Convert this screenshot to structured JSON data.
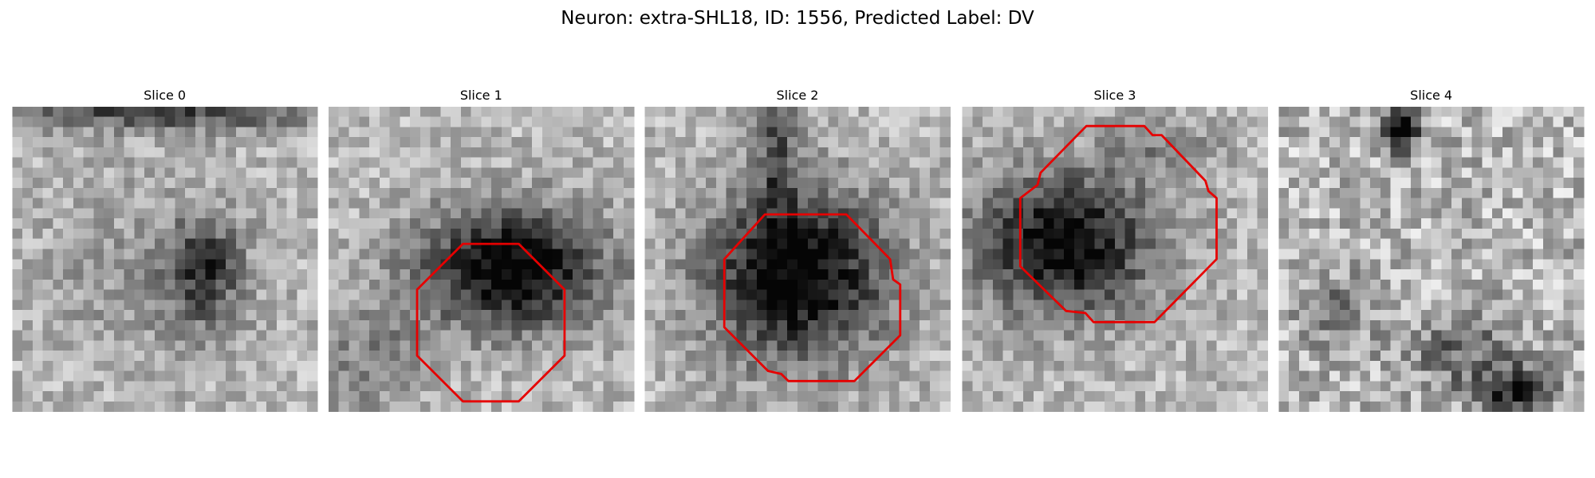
{
  "figure": {
    "title": "Neuron: extra-SHL18, ID: 1556, Predicted Label: DV",
    "panels": [
      {
        "title": "Slice 0"
      },
      {
        "title": "Slice 1"
      },
      {
        "title": "Slice 2"
      },
      {
        "title": "Slice 3"
      },
      {
        "title": "Slice 4"
      }
    ]
  }
}
